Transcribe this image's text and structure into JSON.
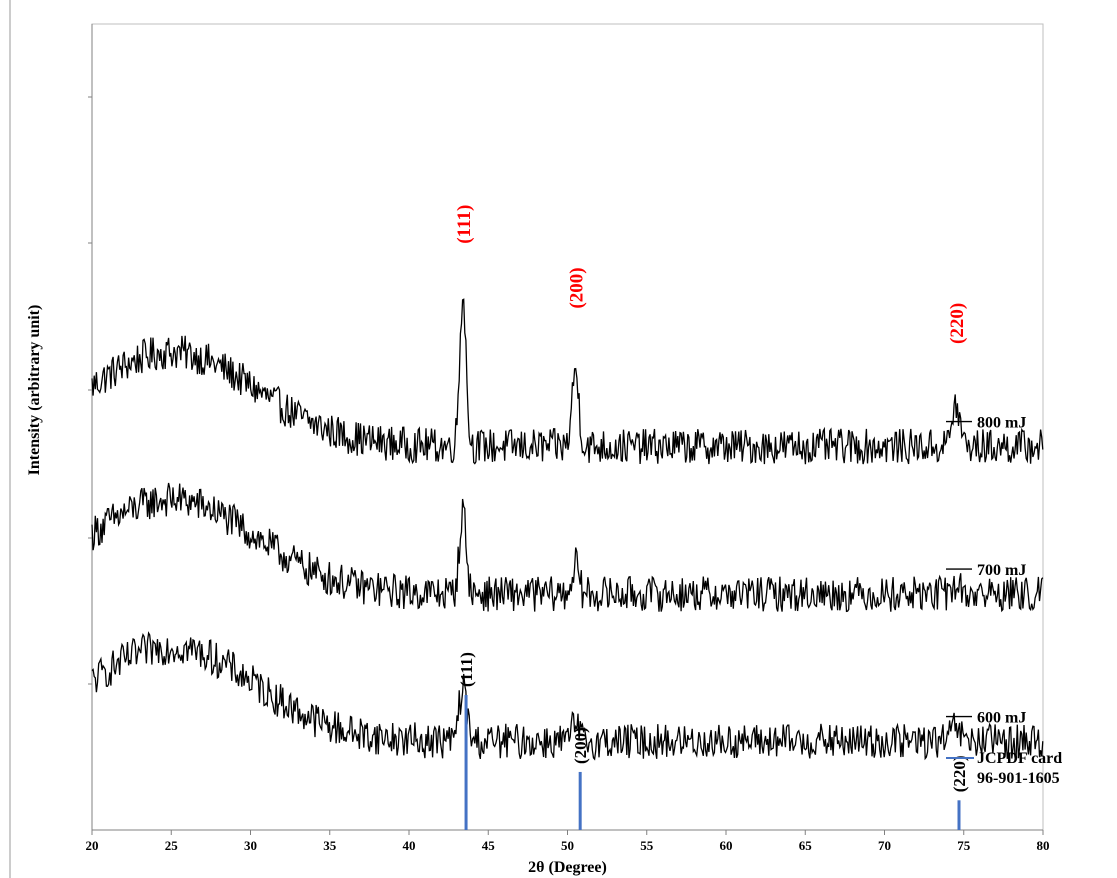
{
  "chart_data": {
    "type": "line",
    "xlabel": "2θ (Degree)",
    "ylabel": "Intensity (arbitrary unit)",
    "xlim": [
      20,
      80
    ],
    "x_ticks": [
      "20",
      "25",
      "30",
      "35",
      "40",
      "45",
      "50",
      "55",
      "60",
      "65",
      "70",
      "75",
      "80"
    ],
    "grid": false,
    "legend": "labels at right end of each trace",
    "colors": {
      "trace": "#000000",
      "reference": "#4472c4",
      "peak_label": "#ff0000"
    },
    "series": [
      {
        "name": "800 mJ",
        "offset": 6.5,
        "noise": 0.3,
        "peaks": [
          [
            43.4,
            2.6,
            0.28
          ],
          [
            50.5,
            1.3,
            0.3
          ],
          [
            74.5,
            0.7,
            0.35
          ]
        ]
      },
      {
        "name": "700 mJ",
        "offset": 4.0,
        "noise": 0.3,
        "peaks": [
          [
            43.4,
            1.4,
            0.3
          ],
          [
            50.5,
            0.5,
            0.3
          ],
          [
            74.5,
            0.15,
            0.35
          ]
        ]
      },
      {
        "name": "600 mJ",
        "offset": 1.5,
        "noise": 0.3,
        "peaks": [
          [
            43.4,
            0.9,
            0.35
          ],
          [
            50.5,
            0.3,
            0.3
          ],
          [
            74.5,
            0.25,
            0.35
          ]
        ]
      }
    ],
    "peak_labels": [
      {
        "text": "(111)",
        "x": 43.4
      },
      {
        "text": "(200)",
        "x": 50.5
      },
      {
        "text": "(220)",
        "x": 74.5
      }
    ],
    "reference": {
      "name_line1": "JCPDF card",
      "name_line2": "96-901-1605",
      "sticks": [
        {
          "x": 43.6,
          "rel": 1.0,
          "label": "(111)"
        },
        {
          "x": 50.8,
          "rel": 0.43,
          "label": "(200)"
        },
        {
          "x": 74.7,
          "rel": 0.22,
          "label": "(220)"
        }
      ]
    }
  }
}
